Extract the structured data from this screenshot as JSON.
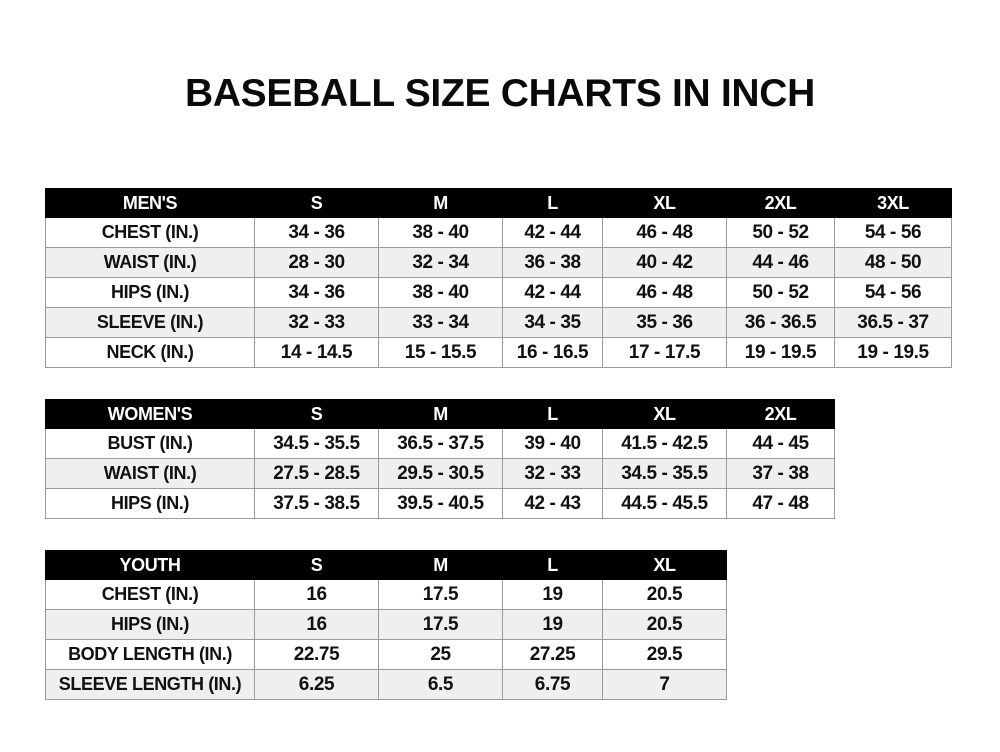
{
  "title": "BASEBALL SIZE CHARTS IN INCH",
  "tables": [
    {
      "header": [
        "MEN'S",
        "S",
        "M",
        "L",
        "XL",
        "2XL",
        "3XL"
      ],
      "rows": [
        [
          "CHEST (IN.)",
          "34 - 36",
          "38 - 40",
          "42 - 44",
          "46 - 48",
          "50 - 52",
          "54 - 56"
        ],
        [
          "WAIST (IN.)",
          "28 - 30",
          "32 - 34",
          "36 - 38",
          "40 - 42",
          "44 - 46",
          "48 - 50"
        ],
        [
          "HIPS (IN.)",
          "34 - 36",
          "38 - 40",
          "42 - 44",
          "46 - 48",
          "50 - 52",
          "54 - 56"
        ],
        [
          "SLEEVE (IN.)",
          "32 - 33",
          "33 - 34",
          "34 - 35",
          "35 - 36",
          "36 - 36.5",
          "36.5 - 37"
        ],
        [
          "NECK (IN.)",
          "14 - 14.5",
          "15 - 15.5",
          "16 - 16.5",
          "17 - 17.5",
          "19 - 19.5",
          "19 - 19.5"
        ]
      ]
    },
    {
      "header": [
        "WOMEN'S",
        "S",
        "M",
        "L",
        "XL",
        "2XL"
      ],
      "rows": [
        [
          "BUST (IN.)",
          "34.5 - 35.5",
          "36.5 - 37.5",
          "39 - 40",
          "41.5 - 42.5",
          "44 - 45"
        ],
        [
          "WAIST (IN.)",
          "27.5 - 28.5",
          "29.5 - 30.5",
          "32 - 33",
          "34.5 - 35.5",
          "37 - 38"
        ],
        [
          "HIPS (IN.)",
          "37.5 - 38.5",
          "39.5 - 40.5",
          "42 - 43",
          "44.5 - 45.5",
          "47 - 48"
        ]
      ]
    },
    {
      "header": [
        "YOUTH",
        "S",
        "M",
        "L",
        "XL"
      ],
      "rows": [
        [
          "CHEST (IN.)",
          "16",
          "17.5",
          "19",
          "20.5"
        ],
        [
          "HIPS (IN.)",
          "16",
          "17.5",
          "19",
          "20.5"
        ],
        [
          "BODY LENGTH (IN.)",
          "22.75",
          "25",
          "27.25",
          "29.5"
        ],
        [
          "SLEEVE LENGTH (IN.)",
          "6.25",
          "6.5",
          "6.75",
          "7"
        ]
      ]
    }
  ]
}
